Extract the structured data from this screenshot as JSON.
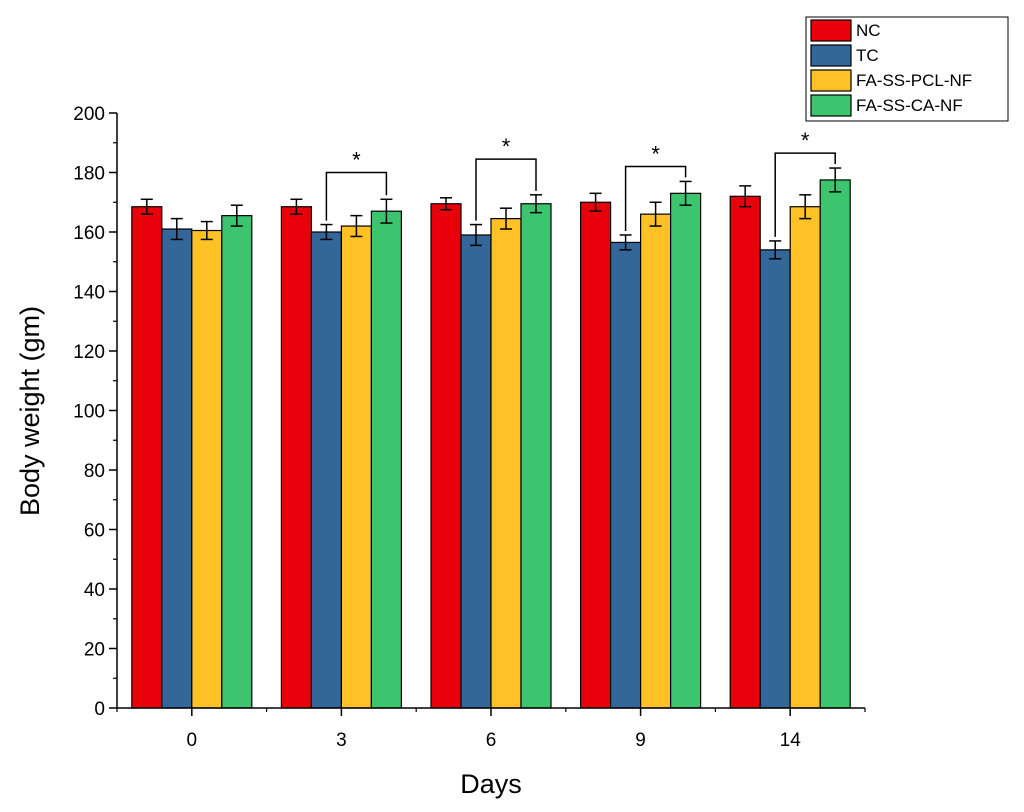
{
  "chart_data": {
    "type": "bar",
    "title": "",
    "xlabel": "Days",
    "ylabel": "Body weight (gm)",
    "ylim": [
      0,
      200
    ],
    "y_ticks": [
      0,
      20,
      40,
      60,
      80,
      100,
      120,
      140,
      160,
      180,
      200
    ],
    "categories": [
      "0",
      "3",
      "6",
      "9",
      "14"
    ],
    "legend_position": "top-right",
    "series": [
      {
        "name": "NC",
        "color": "#e8000a",
        "values": [
          168.5,
          168.5,
          169.5,
          170,
          172
        ],
        "errors": [
          2.5,
          2.5,
          2,
          3,
          3.5
        ]
      },
      {
        "name": "TC",
        "color": "#336699",
        "values": [
          161,
          160,
          159,
          156.5,
          154
        ],
        "errors": [
          3.5,
          2.5,
          3.5,
          2.5,
          3
        ]
      },
      {
        "name": "FA-SS-PCL-NF",
        "color": "#ffc125",
        "values": [
          160.5,
          162,
          164.5,
          166,
          168.5
        ],
        "errors": [
          3,
          3.5,
          3.5,
          4,
          4
        ]
      },
      {
        "name": "FA-SS-CA-NF",
        "color": "#3cc46e",
        "values": [
          165.5,
          167,
          169.5,
          173,
          177.5
        ],
        "errors": [
          3.5,
          4,
          3,
          4,
          4
        ]
      }
    ],
    "significance": [
      {
        "category": "3",
        "from_series": 1,
        "to_series": 3,
        "bracket_y": 180,
        "label": "*"
      },
      {
        "category": "6",
        "from_series": 1,
        "to_series": 3,
        "bracket_y": 184.5,
        "label": "*"
      },
      {
        "category": "9",
        "from_series": 1,
        "to_series": 3,
        "bracket_y": 182,
        "label": "*"
      },
      {
        "category": "14",
        "from_series": 1,
        "to_series": 3,
        "bracket_y": 186.5,
        "label": "*"
      }
    ]
  }
}
